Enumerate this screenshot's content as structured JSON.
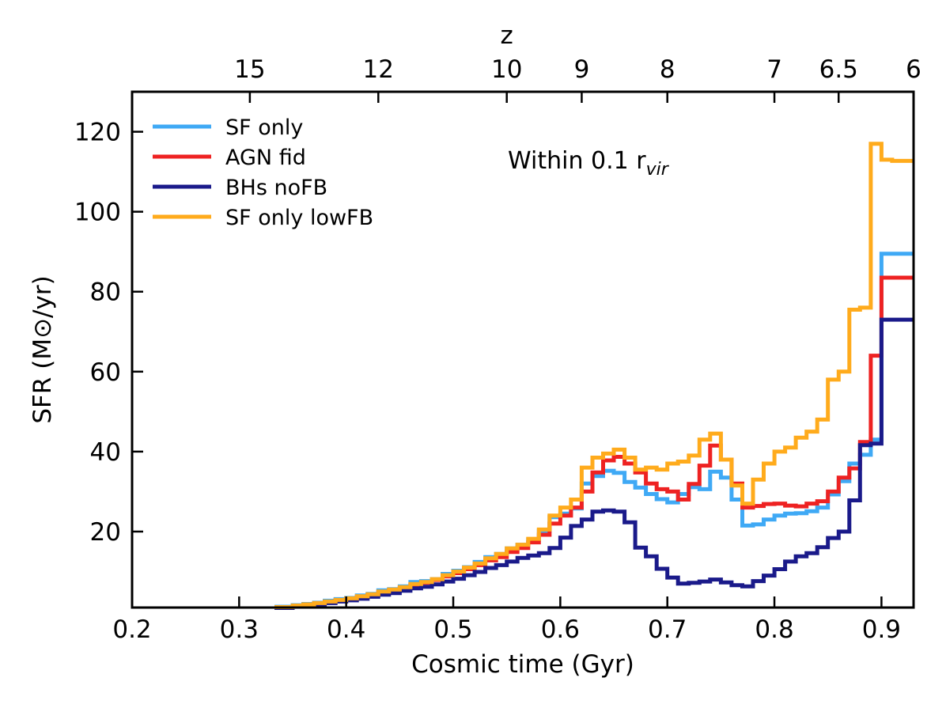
{
  "chart_data": {
    "type": "line",
    "step": true,
    "xlabel": "Cosmic time (Gyr)",
    "ylabel": "SFR (M⊙/yr)",
    "top_axis_label": "z",
    "xlim": [
      0.2,
      0.93
    ],
    "ylim": [
      1,
      130
    ],
    "x_ticks": [
      "0.2",
      "0.3",
      "0.4",
      "0.5",
      "0.6",
      "0.7",
      "0.8",
      "0.9"
    ],
    "y_ticks": [
      "20",
      "40",
      "60",
      "80",
      "100",
      "120"
    ],
    "top_ticks": [
      {
        "t": 0.31,
        "label": "15"
      },
      {
        "t": 0.43,
        "label": "12"
      },
      {
        "t": 0.55,
        "label": "10"
      },
      {
        "t": 0.62,
        "label": "9"
      },
      {
        "t": 0.7,
        "label": "8"
      },
      {
        "t": 0.8,
        "label": "7"
      },
      {
        "t": 0.86,
        "label": "6.5"
      },
      {
        "t": 0.93,
        "label": "6"
      }
    ],
    "annotation": {
      "main": "Within 0.1 r",
      "sub": "vir"
    },
    "legend_position": "top-left",
    "series": [
      {
        "name": "SF only",
        "color": "#3fa9f5",
        "x": [
          0.333,
          0.35,
          0.36,
          0.37,
          0.38,
          0.39,
          0.4,
          0.41,
          0.42,
          0.43,
          0.44,
          0.45,
          0.46,
          0.47,
          0.48,
          0.49,
          0.5,
          0.51,
          0.52,
          0.53,
          0.54,
          0.55,
          0.56,
          0.57,
          0.58,
          0.59,
          0.6,
          0.61,
          0.62,
          0.63,
          0.64,
          0.65,
          0.66,
          0.67,
          0.68,
          0.69,
          0.7,
          0.71,
          0.72,
          0.73,
          0.74,
          0.75,
          0.76,
          0.77,
          0.78,
          0.79,
          0.8,
          0.81,
          0.82,
          0.83,
          0.84,
          0.85,
          0.86,
          0.87,
          0.88,
          0.89,
          0.9,
          0.91,
          0.93
        ],
        "y": [
          1.2,
          1.6,
          1.9,
          2.2,
          2.7,
          3.1,
          3.4,
          4.0,
          4.4,
          5.3,
          5.6,
          6.3,
          7.4,
          7.6,
          8.1,
          9.4,
          10.2,
          11.1,
          12.4,
          13.6,
          14.4,
          15.8,
          16.7,
          18.0,
          20.2,
          23.6,
          24.5,
          25.8,
          32.0,
          33.9,
          35.2,
          34.7,
          32.4,
          31.0,
          29.4,
          28.1,
          27.3,
          29.4,
          31.1,
          30.6,
          35.0,
          33.5,
          28.0,
          21.5,
          21.8,
          23.0,
          24.0,
          24.5,
          24.6,
          25.1,
          26.0,
          29.3,
          32.6,
          37.0,
          39.2,
          43.0,
          89.5,
          89.5,
          89.5
        ]
      },
      {
        "name": "AGN fid",
        "color": "#ee2222",
        "x": [
          0.333,
          0.35,
          0.36,
          0.37,
          0.38,
          0.39,
          0.4,
          0.41,
          0.42,
          0.43,
          0.44,
          0.45,
          0.46,
          0.47,
          0.48,
          0.49,
          0.5,
          0.51,
          0.52,
          0.53,
          0.54,
          0.55,
          0.56,
          0.57,
          0.58,
          0.59,
          0.6,
          0.61,
          0.62,
          0.63,
          0.64,
          0.65,
          0.66,
          0.67,
          0.68,
          0.69,
          0.7,
          0.71,
          0.72,
          0.73,
          0.74,
          0.75,
          0.76,
          0.77,
          0.78,
          0.79,
          0.8,
          0.81,
          0.82,
          0.83,
          0.84,
          0.85,
          0.86,
          0.87,
          0.88,
          0.89,
          0.9,
          0.91,
          0.93
        ],
        "y": [
          1.1,
          1.4,
          1.7,
          2.0,
          2.4,
          2.8,
          3.1,
          3.6,
          4.1,
          4.8,
          5.3,
          5.9,
          6.7,
          7.2,
          7.9,
          8.8,
          9.6,
          10.6,
          11.6,
          12.8,
          13.6,
          14.9,
          15.9,
          17.3,
          19.2,
          22.0,
          24.0,
          26.0,
          30.0,
          34.8,
          37.8,
          38.7,
          37.0,
          34.8,
          32.0,
          30.6,
          30.0,
          28.0,
          31.9,
          36.5,
          41.5,
          38.0,
          32.0,
          26.0,
          26.4,
          26.9,
          27.0,
          26.5,
          26.3,
          27.0,
          27.6,
          30.0,
          33.5,
          35.8,
          42.4,
          64.0,
          83.5,
          83.5,
          83.5
        ]
      },
      {
        "name": "BHs noFB",
        "color": "#1a1a8a",
        "x": [
          0.333,
          0.35,
          0.36,
          0.37,
          0.38,
          0.39,
          0.4,
          0.41,
          0.42,
          0.43,
          0.44,
          0.45,
          0.46,
          0.47,
          0.48,
          0.49,
          0.5,
          0.51,
          0.52,
          0.53,
          0.54,
          0.55,
          0.56,
          0.57,
          0.58,
          0.59,
          0.6,
          0.61,
          0.62,
          0.63,
          0.64,
          0.65,
          0.66,
          0.67,
          0.68,
          0.69,
          0.7,
          0.71,
          0.72,
          0.73,
          0.74,
          0.75,
          0.76,
          0.77,
          0.78,
          0.79,
          0.8,
          0.81,
          0.82,
          0.83,
          0.84,
          0.85,
          0.86,
          0.87,
          0.88,
          0.89,
          0.9,
          0.91,
          0.93
        ],
        "y": [
          0.9,
          1.2,
          1.5,
          1.8,
          2.1,
          2.5,
          2.8,
          3.2,
          3.7,
          4.2,
          4.6,
          5.2,
          5.8,
          6.2,
          6.8,
          7.5,
          8.2,
          9.1,
          9.9,
          10.9,
          11.6,
          12.5,
          13.4,
          14.0,
          14.6,
          15.9,
          18.5,
          21.4,
          23.0,
          25.0,
          25.3,
          25.0,
          22.3,
          16.0,
          13.8,
          10.7,
          8.5,
          7.0,
          7.2,
          7.5,
          8.0,
          7.3,
          6.6,
          6.3,
          7.6,
          9.0,
          10.6,
          12.5,
          13.8,
          14.6,
          16.1,
          18.4,
          20.0,
          27.8,
          41.6,
          42.0,
          73.0,
          73.0,
          73.0
        ]
      },
      {
        "name": "SF only lowFB",
        "color": "#ffab1c",
        "x": [
          0.333,
          0.35,
          0.36,
          0.37,
          0.38,
          0.39,
          0.4,
          0.41,
          0.42,
          0.43,
          0.44,
          0.45,
          0.46,
          0.47,
          0.48,
          0.49,
          0.5,
          0.51,
          0.52,
          0.53,
          0.54,
          0.55,
          0.56,
          0.57,
          0.58,
          0.59,
          0.6,
          0.61,
          0.62,
          0.63,
          0.64,
          0.65,
          0.66,
          0.67,
          0.68,
          0.69,
          0.7,
          0.71,
          0.72,
          0.73,
          0.74,
          0.75,
          0.76,
          0.77,
          0.78,
          0.79,
          0.8,
          0.81,
          0.82,
          0.83,
          0.84,
          0.85,
          0.86,
          0.87,
          0.88,
          0.89,
          0.9,
          0.91,
          0.93
        ],
        "y": [
          1.1,
          1.5,
          1.8,
          2.1,
          2.5,
          2.9,
          3.3,
          3.8,
          4.3,
          5.0,
          5.5,
          6.1,
          6.9,
          7.4,
          8.1,
          9.1,
          10.0,
          11.0,
          12.0,
          13.3,
          14.4,
          15.8,
          16.7,
          18.2,
          20.5,
          24.0,
          26.0,
          28.0,
          36.0,
          38.5,
          39.5,
          40.5,
          38.5,
          35.5,
          36.0,
          35.5,
          37.0,
          37.5,
          39.0,
          43.0,
          44.5,
          38.0,
          31.5,
          27.0,
          33.0,
          37.0,
          40.0,
          41.0,
          43.5,
          45.0,
          48.0,
          58.0,
          60.0,
          75.5,
          76.0,
          117.0,
          113.0,
          112.7,
          112.7
        ]
      }
    ]
  }
}
